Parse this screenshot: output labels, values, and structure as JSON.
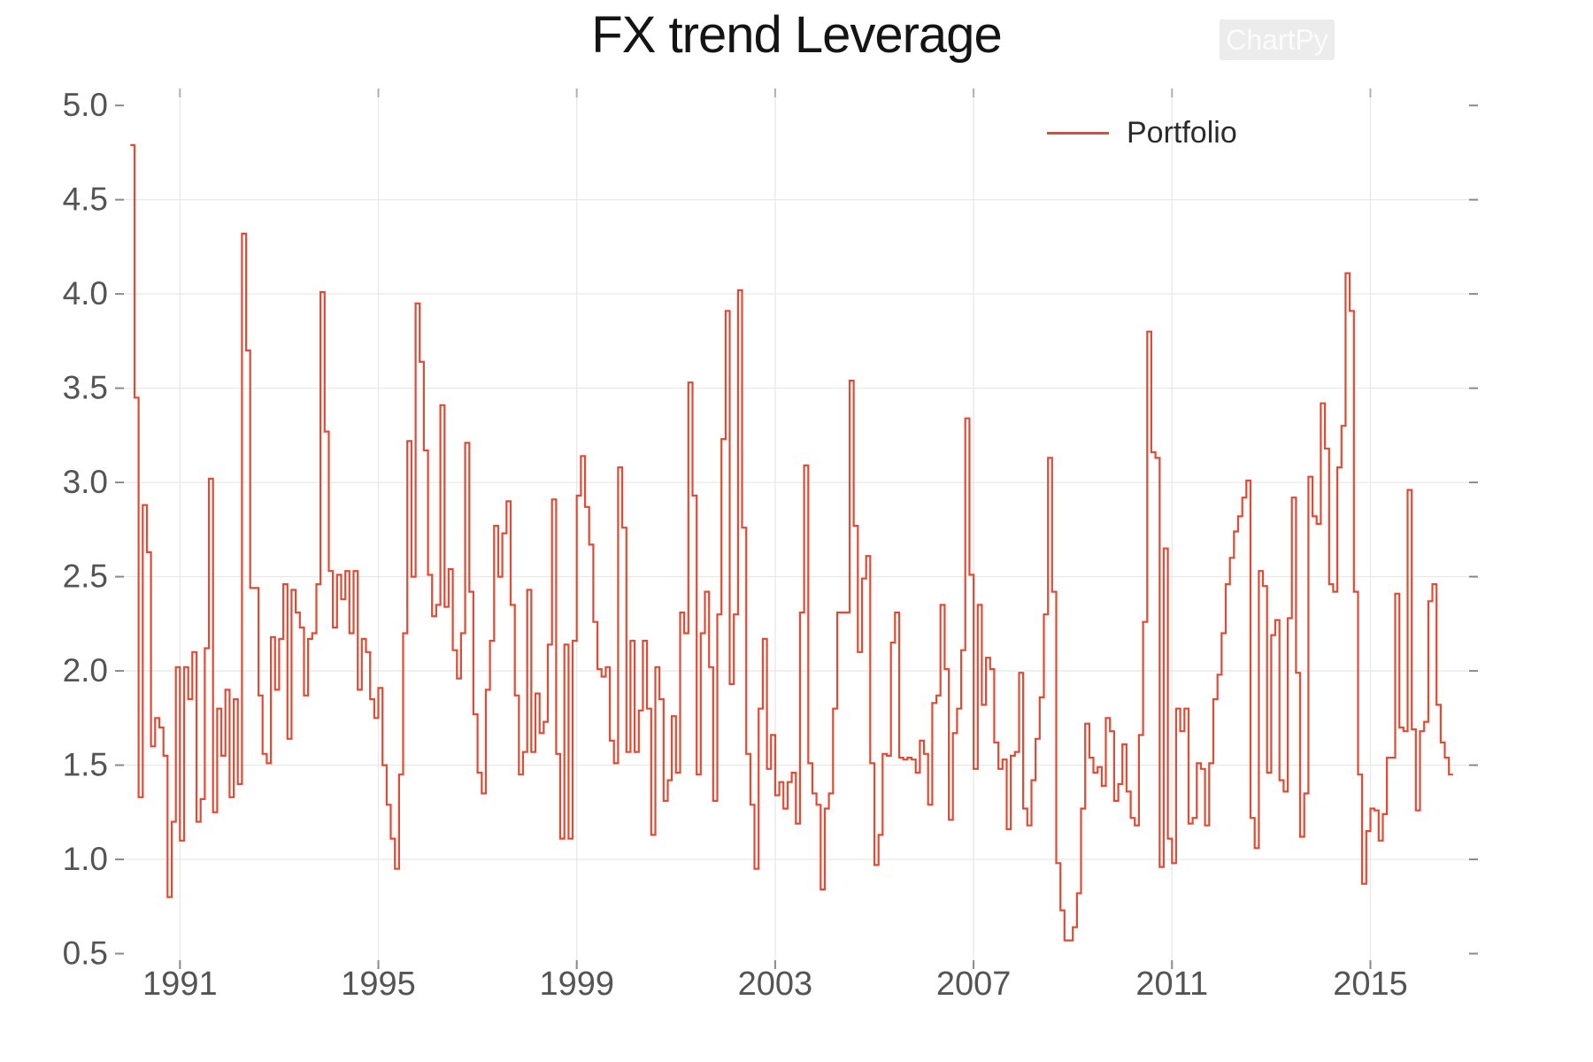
{
  "title": "FX trend Leverage",
  "watermark": "ChartPy",
  "legend": {
    "label": "Portfolio",
    "position": "upper right"
  },
  "colors": {
    "line": "#e24a33",
    "grid": "#e9e9e9",
    "tick": "#8a8a8a",
    "top_tick": "#b0b0b0",
    "tick_label": "#545454",
    "title": "#141414",
    "watermark_bg": "#ececec",
    "watermark_text": "#fbfbfb"
  },
  "chart_data": {
    "type": "line",
    "step": "post",
    "title": "FX trend Leverage",
    "xlabel": "",
    "ylabel": "",
    "grid": true,
    "legend_position": "upper right",
    "x_ticks": [
      1991,
      1995,
      1999,
      2003,
      2007,
      2011,
      2015
    ],
    "y_ticks": [
      0.5,
      1.0,
      1.5,
      2.0,
      2.5,
      3.0,
      3.5,
      4.0,
      4.5,
      5.0
    ],
    "xlim": [
      1989.87,
      2016.99
    ],
    "ylim": [
      0.465,
      5.09
    ],
    "series": [
      {
        "name": "Portfolio",
        "start_year": 1990,
        "start_month": 1,
        "frequency": "monthly",
        "values": [
          4.79,
          3.45,
          1.33,
          2.88,
          2.63,
          1.6,
          1.75,
          1.7,
          1.55,
          0.8,
          1.2,
          2.02,
          1.1,
          2.02,
          1.85,
          2.1,
          1.2,
          1.32,
          2.12,
          3.02,
          1.25,
          1.8,
          1.55,
          1.9,
          1.33,
          1.85,
          1.4,
          4.32,
          3.7,
          2.44,
          2.44,
          1.87,
          1.56,
          1.51,
          2.18,
          1.9,
          2.17,
          2.46,
          1.64,
          2.43,
          2.31,
          2.23,
          1.87,
          2.17,
          2.2,
          2.46,
          4.01,
          3.27,
          2.53,
          2.23,
          2.51,
          2.38,
          2.53,
          2.2,
          2.53,
          1.9,
          2.17,
          2.1,
          1.85,
          1.75,
          1.91,
          1.5,
          1.29,
          1.11,
          0.95,
          1.45,
          2.2,
          3.22,
          2.5,
          3.95,
          3.64,
          3.17,
          2.51,
          2.29,
          2.35,
          3.41,
          2.34,
          2.54,
          2.11,
          1.96,
          2.2,
          3.21,
          2.42,
          1.77,
          1.46,
          1.35,
          1.9,
          2.16,
          2.77,
          2.5,
          2.73,
          2.9,
          2.35,
          1.87,
          1.45,
          1.57,
          2.43,
          1.57,
          1.88,
          1.67,
          1.73,
          2.14,
          2.91,
          1.56,
          1.11,
          2.14,
          1.11,
          2.16,
          2.93,
          3.14,
          2.87,
          2.67,
          2.26,
          2.01,
          1.97,
          2.02,
          1.63,
          1.51,
          3.08,
          2.76,
          1.57,
          2.16,
          1.57,
          1.79,
          2.16,
          1.8,
          1.13,
          2.02,
          1.85,
          1.31,
          1.42,
          1.76,
          1.46,
          2.31,
          2.2,
          3.53,
          2.93,
          1.45,
          2.2,
          2.42,
          2.02,
          1.31,
          2.3,
          3.23,
          3.91,
          1.93,
          2.3,
          4.02,
          2.76,
          1.56,
          1.29,
          0.95,
          1.8,
          2.17,
          1.48,
          1.66,
          1.34,
          1.41,
          1.27,
          1.41,
          1.46,
          1.19,
          2.31,
          3.09,
          1.51,
          1.35,
          1.29,
          0.84,
          1.27,
          1.35,
          1.8,
          2.31,
          2.31,
          2.31,
          3.54,
          2.77,
          2.1,
          2.49,
          2.61,
          1.51,
          0.97,
          1.13,
          1.56,
          1.55,
          2.15,
          2.31,
          1.54,
          1.53,
          1.54,
          1.53,
          1.46,
          1.63,
          1.56,
          1.29,
          1.83,
          1.87,
          2.35,
          2.01,
          1.21,
          1.67,
          1.8,
          2.11,
          3.34,
          2.51,
          1.48,
          2.35,
          1.82,
          2.07,
          2.01,
          1.62,
          1.48,
          1.53,
          1.16,
          1.55,
          1.57,
          1.99,
          1.27,
          1.18,
          1.42,
          1.64,
          1.86,
          2.3,
          3.13,
          2.42,
          0.98,
          0.73,
          0.57,
          0.57,
          0.64,
          0.82,
          1.27,
          1.72,
          1.54,
          1.46,
          1.49,
          1.39,
          1.75,
          1.68,
          1.31,
          1.4,
          1.61,
          1.36,
          1.22,
          1.18,
          1.66,
          2.26,
          3.8,
          3.16,
          3.13,
          0.96,
          2.65,
          1.11,
          0.98,
          1.8,
          1.68,
          1.8,
          1.19,
          1.22,
          1.51,
          1.48,
          1.18,
          1.51,
          1.85,
          1.98,
          2.2,
          2.46,
          2.6,
          2.74,
          2.82,
          2.92,
          3.01,
          1.22,
          1.06,
          2.53,
          2.45,
          1.46,
          2.19,
          2.27,
          1.42,
          1.36,
          2.28,
          2.92,
          1.99,
          1.12,
          1.35,
          3.03,
          2.82,
          2.78,
          3.42,
          3.18,
          2.46,
          2.42,
          3.08,
          3.3,
          4.11,
          3.91,
          2.42,
          1.45,
          0.87,
          1.15,
          1.27,
          1.26,
          1.1,
          1.24,
          1.54,
          1.54,
          2.41,
          1.7,
          1.68,
          2.96,
          1.69,
          1.26,
          1.68,
          1.73,
          2.37,
          2.46,
          1.82,
          1.62,
          1.54,
          1.45
        ]
      }
    ]
  }
}
